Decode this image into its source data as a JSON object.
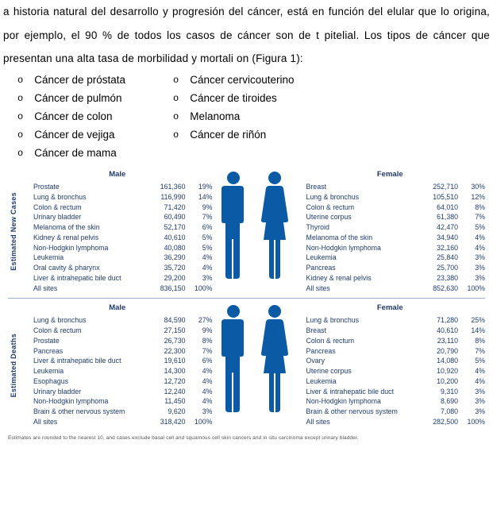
{
  "paragraph": "a historia natural del desarrollo y progresión del cáncer, está en función del elular que lo origina, por ejemplo, el 90 % de todos los casos de cáncer son de t pitelial. Los tipos de cáncer que presentan una alta tasa de morbilidad y mortali on (Figura 1):",
  "bullets": {
    "left": [
      "Cáncer de próstata",
      "Cáncer de pulmón",
      "Cáncer de colon",
      "Cáncer de vejiga",
      "Cáncer de mama"
    ],
    "right": [
      "Cáncer cervicouterino",
      "Cáncer de tiroides",
      "Melanoma",
      "Cáncer de riñón"
    ]
  },
  "infographic": {
    "text_color": "#1f3b6e",
    "silhouette_color": "#0b5aa6",
    "sections": [
      {
        "label": "Estimated New Cases",
        "male_header": "Male",
        "female_header": "Female",
        "male": [
          {
            "site": "Prostate",
            "cases": "161,360",
            "pct": "19%"
          },
          {
            "site": "Lung & bronchus",
            "cases": "116,990",
            "pct": "14%"
          },
          {
            "site": "Colon & rectum",
            "cases": "71,420",
            "pct": "9%"
          },
          {
            "site": "Urinary bladder",
            "cases": "60,490",
            "pct": "7%"
          },
          {
            "site": "Melanoma of the skin",
            "cases": "52,170",
            "pct": "6%"
          },
          {
            "site": "Kidney & renal pelvis",
            "cases": "40,610",
            "pct": "5%"
          },
          {
            "site": "Non-Hodgkin lymphoma",
            "cases": "40,080",
            "pct": "5%"
          },
          {
            "site": "Leukemia",
            "cases": "36,290",
            "pct": "4%"
          },
          {
            "site": "Oral cavity & pharynx",
            "cases": "35,720",
            "pct": "4%"
          },
          {
            "site": "Liver & intrahepatic bile duct",
            "cases": "29,200",
            "pct": "3%"
          },
          {
            "site": "All sites",
            "cases": "836,150",
            "pct": "100%"
          }
        ],
        "female": [
          {
            "site": "Breast",
            "cases": "252,710",
            "pct": "30%"
          },
          {
            "site": "Lung & bronchus",
            "cases": "105,510",
            "pct": "12%"
          },
          {
            "site": "Colon & rectum",
            "cases": "64,010",
            "pct": "8%"
          },
          {
            "site": "Uterine corpus",
            "cases": "61,380",
            "pct": "7%"
          },
          {
            "site": "Thyroid",
            "cases": "42,470",
            "pct": "5%"
          },
          {
            "site": "Melanoma of the skin",
            "cases": "34,940",
            "pct": "4%"
          },
          {
            "site": "Non-Hodgkin lymphoma",
            "cases": "32,160",
            "pct": "4%"
          },
          {
            "site": "Leukemia",
            "cases": "25,840",
            "pct": "3%"
          },
          {
            "site": "Pancreas",
            "cases": "25,700",
            "pct": "3%"
          },
          {
            "site": "Kidney & renal pelvis",
            "cases": "23,380",
            "pct": "3%"
          },
          {
            "site": "All sites",
            "cases": "852,630",
            "pct": "100%"
          }
        ]
      },
      {
        "label": "Estimated Deaths",
        "male_header": "Male",
        "female_header": "Female",
        "male": [
          {
            "site": "Lung & bronchus",
            "cases": "84,590",
            "pct": "27%"
          },
          {
            "site": "Colon & rectum",
            "cases": "27,150",
            "pct": "9%"
          },
          {
            "site": "Prostate",
            "cases": "26,730",
            "pct": "8%"
          },
          {
            "site": "Pancreas",
            "cases": "22,300",
            "pct": "7%"
          },
          {
            "site": "Liver & intrahepatic bile duct",
            "cases": "19,610",
            "pct": "6%"
          },
          {
            "site": "Leukemia",
            "cases": "14,300",
            "pct": "4%"
          },
          {
            "site": "Esophagus",
            "cases": "12,720",
            "pct": "4%"
          },
          {
            "site": "Urinary bladder",
            "cases": "12,240",
            "pct": "4%"
          },
          {
            "site": "Non-Hodgkin lymphoma",
            "cases": "11,450",
            "pct": "4%"
          },
          {
            "site": "Brain & other nervous system",
            "cases": "9,620",
            "pct": "3%"
          },
          {
            "site": "All sites",
            "cases": "318,420",
            "pct": "100%"
          }
        ],
        "female": [
          {
            "site": "Lung & bronchus",
            "cases": "71,280",
            "pct": "25%"
          },
          {
            "site": "Breast",
            "cases": "40,610",
            "pct": "14%"
          },
          {
            "site": "Colon & rectum",
            "cases": "23,110",
            "pct": "8%"
          },
          {
            "site": "Pancreas",
            "cases": "20,790",
            "pct": "7%"
          },
          {
            "site": "Ovary",
            "cases": "14,080",
            "pct": "5%"
          },
          {
            "site": "Uterine corpus",
            "cases": "10,920",
            "pct": "4%"
          },
          {
            "site": "Leukemia",
            "cases": "10,200",
            "pct": "4%"
          },
          {
            "site": "Liver & intrahepatic bile duct",
            "cases": "9,310",
            "pct": "3%"
          },
          {
            "site": "Non-Hodgkin lymphoma",
            "cases": "8,690",
            "pct": "3%"
          },
          {
            "site": "Brain & other nervous system",
            "cases": "7,080",
            "pct": "3%"
          },
          {
            "site": "All sites",
            "cases": "282,500",
            "pct": "100%"
          }
        ]
      }
    ],
    "footnote": "Estimates are rounded to the nearest 10, and cases exclude basal cell and squamous cell skin cancers and in situ carcinoma except urinary bladder."
  }
}
